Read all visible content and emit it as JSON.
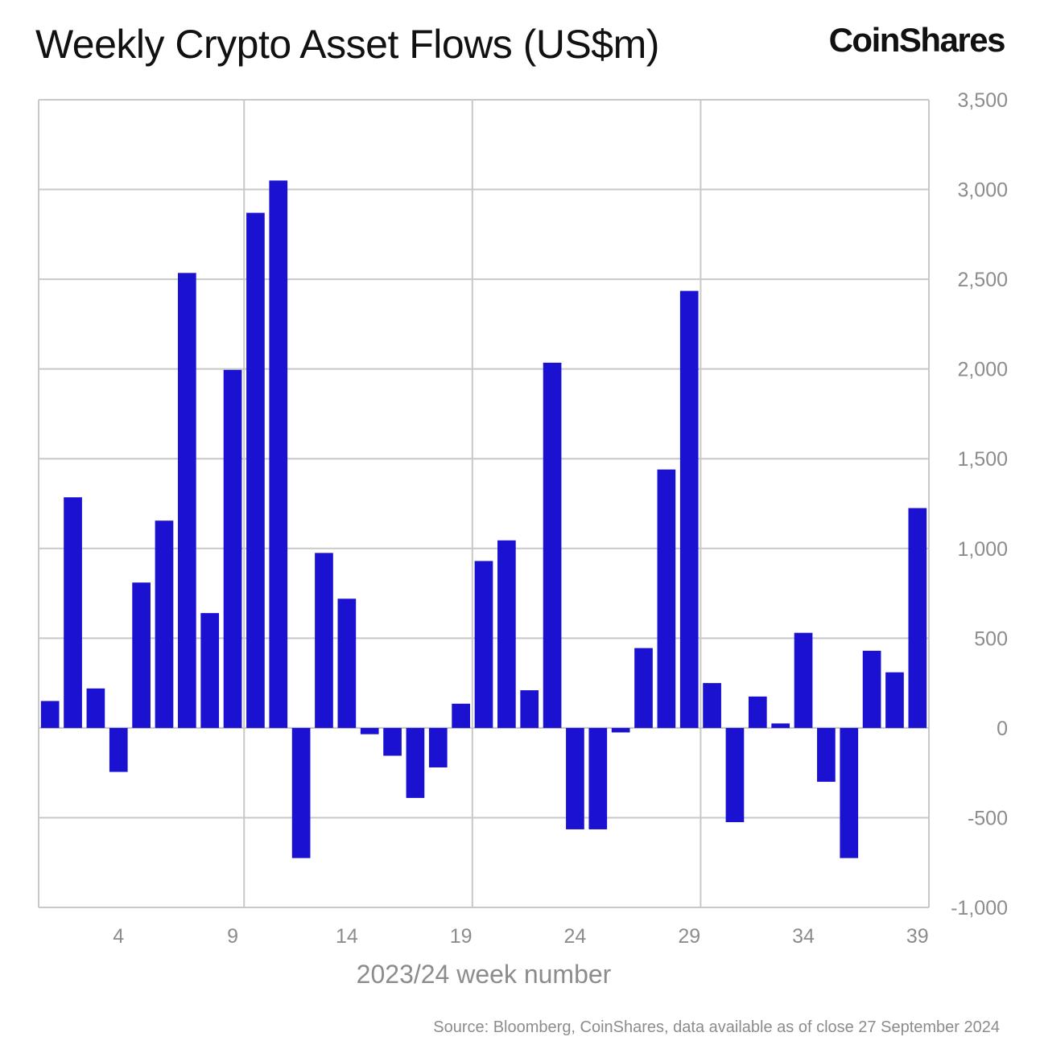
{
  "logo_text": "CoinShares",
  "source_text": "Source: Bloomberg, CoinShares, data available as of close 27 September 2024",
  "colors": {
    "bar": "#1a12d0",
    "grid": "#c8c8c8",
    "axis_text": "#8c8c8c"
  },
  "chart_data": {
    "type": "bar",
    "title": "Weekly Crypto Asset Flows (US$m)",
    "xlabel": "2023/24 week number",
    "ylabel": "",
    "ylim": [
      -1000,
      3500
    ],
    "yticks": [
      3500,
      3000,
      2500,
      2000,
      1500,
      1000,
      500,
      0,
      -500,
      -1000
    ],
    "ytick_labels": [
      "3,500",
      "3,000",
      "2,500",
      "2,000",
      "1,500",
      "1,000",
      "500",
      "0",
      "-500",
      "-1,000"
    ],
    "xticks": [
      4,
      9,
      14,
      19,
      24,
      29,
      34,
      39
    ],
    "y_axis_position": "right",
    "grid": true,
    "categories": [
      1,
      2,
      3,
      4,
      5,
      6,
      7,
      8,
      9,
      10,
      11,
      12,
      13,
      14,
      15,
      16,
      17,
      18,
      19,
      20,
      21,
      22,
      23,
      24,
      25,
      26,
      27,
      28,
      29,
      30,
      31,
      32,
      33,
      34,
      35,
      36,
      37,
      38,
      39
    ],
    "values": [
      150,
      1285,
      220,
      -245,
      810,
      1155,
      2535,
      640,
      1995,
      2870,
      3050,
      -725,
      975,
      720,
      -35,
      -155,
      -390,
      -220,
      135,
      930,
      1045,
      210,
      2035,
      -565,
      -565,
      -25,
      445,
      1440,
      2435,
      250,
      -525,
      175,
      25,
      530,
      -300,
      -725,
      430,
      310,
      1225
    ]
  }
}
